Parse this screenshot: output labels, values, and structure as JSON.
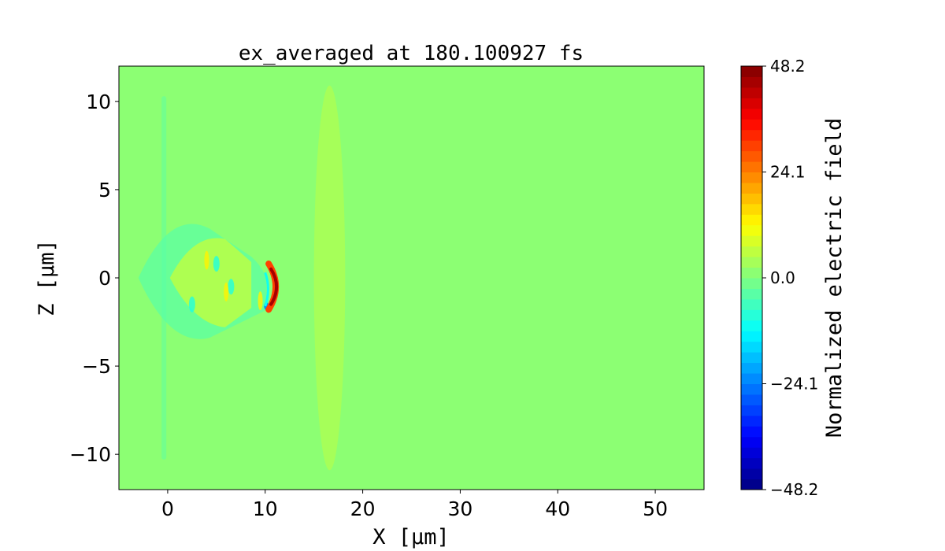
{
  "chart_data": {
    "type": "heatmap",
    "title": "ex_averaged at 180.100927 fs",
    "xlabel": "X [μm]",
    "ylabel": "Z [μm]",
    "xlim": [
      -5,
      55
    ],
    "ylim": [
      -12,
      12
    ],
    "xticks": [
      0,
      10,
      20,
      30,
      40,
      50
    ],
    "xtick_labels": [
      "0",
      "10",
      "20",
      "30",
      "40",
      "50"
    ],
    "yticks": [
      -10,
      -5,
      0,
      5,
      10
    ],
    "ytick_labels": [
      "−10",
      "−5",
      "0",
      "5",
      "10"
    ],
    "colormap": "jet",
    "colorbar": {
      "label": "Normalized electric field",
      "range": [
        -48.2,
        48.2
      ],
      "levels": 40,
      "ticks": [
        -48.2,
        -24.1,
        0.0,
        24.1,
        48.2
      ],
      "tick_labels": [
        "−48.2",
        "−24.1",
        "0.0",
        "24.1",
        "48.2"
      ]
    },
    "background_value": 0.0,
    "features": [
      {
        "name": "ion-slab",
        "x_range": [
          15,
          18.2
        ],
        "z_range": [
          -10.9,
          10.9
        ],
        "value": 4
      },
      {
        "name": "wake-region",
        "x_range": [
          -3,
          11
        ],
        "z_range": [
          -3.5,
          3.5
        ],
        "value": 6
      },
      {
        "name": "laser-front-positive",
        "x": 11,
        "z_range": [
          -1.8,
          0.8
        ],
        "value": 48
      },
      {
        "name": "laser-front-negative",
        "x": 9.8,
        "z": -1.6,
        "value": -24
      },
      {
        "name": "target-edge-left",
        "x": -0.3,
        "z_range": [
          -10.3,
          10.3
        ],
        "value": -4
      }
    ]
  }
}
